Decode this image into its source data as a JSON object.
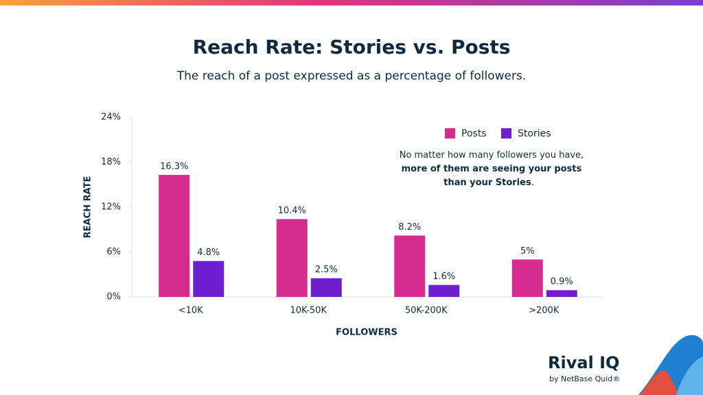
{
  "chart_data": {
    "type": "bar",
    "title": "Reach Rate: Stories vs. Posts",
    "subtitle": "The reach of a post expressed as a percentage of followers.",
    "y_label": "REACH RATE",
    "x_label": "FOLLOWERS",
    "annotation": [
      "No matter how many followers you have,",
      "more of them are seeing your posts",
      "than your Stories",
      "."
    ],
    "categories": [
      "<10K",
      "10K-50K",
      "50K-200K",
      ">200K"
    ],
    "series": [
      {
        "name": "Posts",
        "color": "#d62b8f",
        "values": [
          16.3,
          10.4,
          8.2,
          5
        ],
        "value_labels": [
          "16.3%",
          "10.4%",
          "8.2%",
          "5%"
        ]
      },
      {
        "name": "Stories",
        "color": "#6f1fd0",
        "values": [
          4.8,
          2.5,
          1.6,
          0.9
        ],
        "value_labels": [
          "4.8%",
          "2.5%",
          "1.6%",
          "0.9%"
        ]
      }
    ],
    "ylim": [
      0,
      24
    ],
    "yticks": [
      {
        "value": 0,
        "label": "0%"
      },
      {
        "value": 6,
        "label": "6%"
      },
      {
        "value": 12,
        "label": "12%"
      },
      {
        "value": 18,
        "label": "18%"
      },
      {
        "value": 24,
        "label": "24%"
      }
    ],
    "legend": "upper right",
    "logo": "Rival IQ",
    "logo_sub": "by NetBase Quid®"
  }
}
